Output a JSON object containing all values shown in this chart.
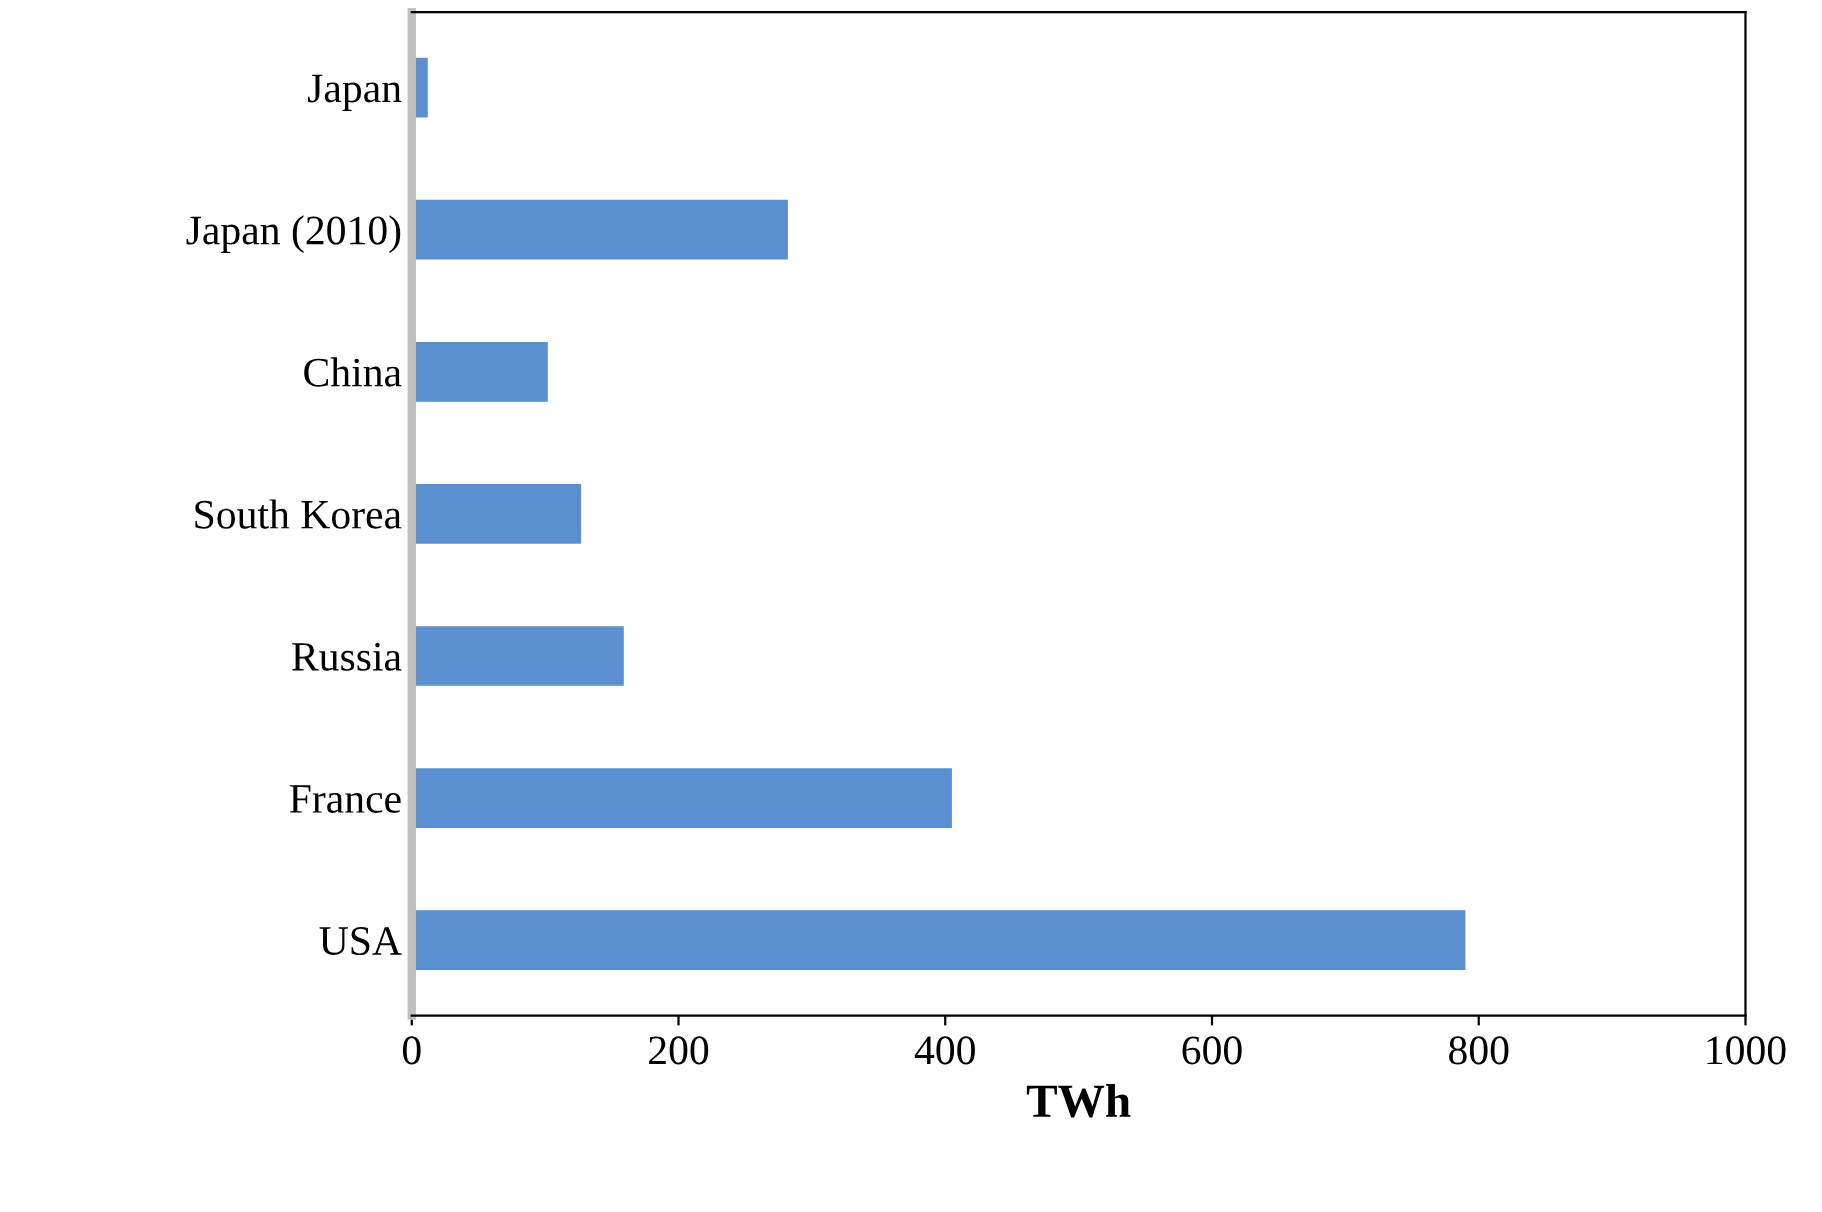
{
  "chart_data": {
    "type": "bar",
    "orientation": "horizontal",
    "xlabel": "TWh",
    "categories": [
      "Japan",
      "Japan (2010)",
      "China",
      "South Korea",
      "Russia",
      "France",
      "USA"
    ],
    "values": [
      12,
      282,
      102,
      127,
      159,
      405,
      790
    ],
    "color": "#5b8fd0",
    "xlim": [
      0,
      1000
    ],
    "xticks": [
      0,
      200,
      400,
      600,
      800,
      1000
    ],
    "grid": false,
    "legend": false
  }
}
